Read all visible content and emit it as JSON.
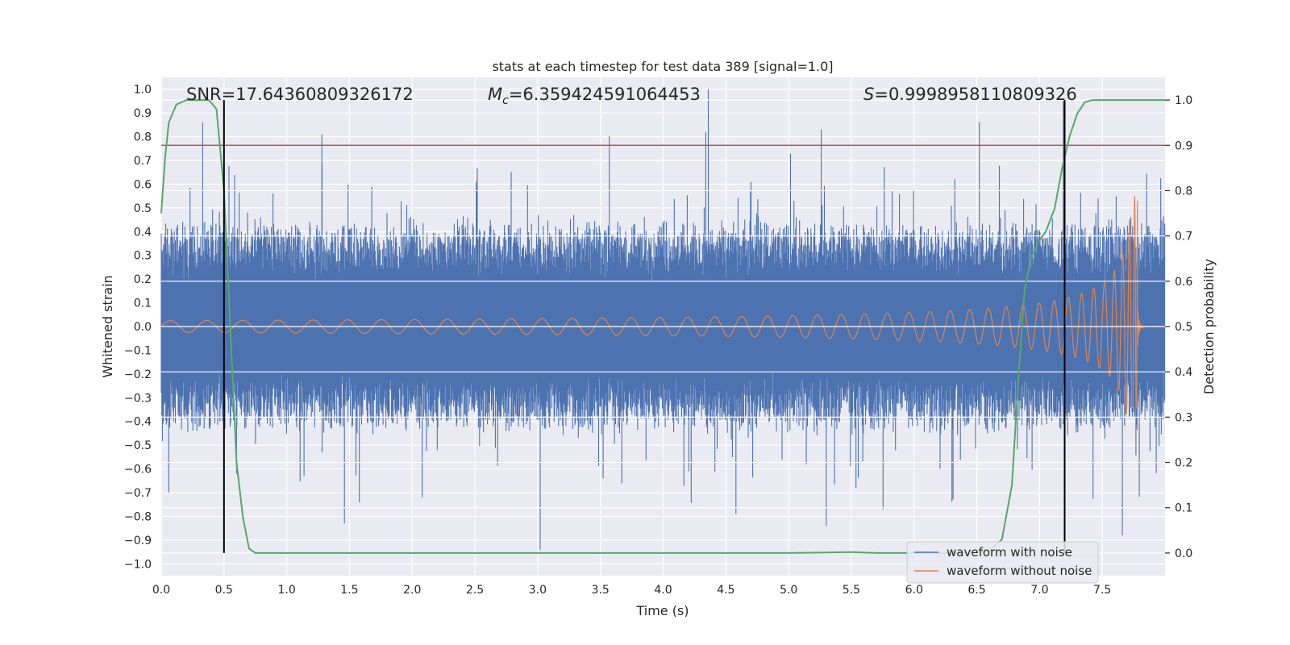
{
  "chart_data": {
    "type": "line",
    "title": "stats at each timestep for test data 389 [signal=1.0]",
    "xlabel": "Time (s)",
    "ylabel": "Whitened strain",
    "y2label": "Detection probability",
    "xlim": [
      0.0,
      8.0
    ],
    "ylim": [
      -1.05,
      1.05
    ],
    "y2lim": [
      -0.05,
      1.05
    ],
    "x_ticks": [
      0.0,
      0.5,
      1.0,
      1.5,
      2.0,
      2.5,
      3.0,
      3.5,
      4.0,
      4.5,
      5.0,
      5.5,
      6.0,
      6.5,
      7.0,
      7.5
    ],
    "x_tick_labels": [
      "0.0",
      "0.5",
      "1.0",
      "1.5",
      "2.0",
      "2.5",
      "3.0",
      "3.5",
      "4.0",
      "4.5",
      "5.0",
      "5.5",
      "6.0",
      "6.5",
      "7.0",
      "7.5"
    ],
    "y_ticks": [
      1.0,
      0.9,
      0.8,
      0.7,
      0.6,
      0.5,
      0.4,
      0.3,
      0.2,
      0.1,
      0.0,
      -0.1,
      -0.2,
      -0.3,
      -0.4,
      -0.5,
      -0.6,
      -0.7,
      -0.8,
      -0.9,
      -1.0
    ],
    "y_tick_labels": [
      "1.0",
      "0.9",
      "0.8",
      "0.7",
      "0.6",
      "0.5",
      "0.4",
      "0.3",
      "0.2",
      "0.1",
      "0.0",
      "−0.1",
      "−0.2",
      "−0.3",
      "−0.4",
      "−0.5",
      "−0.6",
      "−0.7",
      "−0.8",
      "−0.9",
      "−1.0"
    ],
    "y2_ticks": [
      1.0,
      0.9,
      0.8,
      0.7,
      0.6,
      0.5,
      0.4,
      0.3,
      0.2,
      0.1,
      0.0
    ],
    "y2_tick_labels": [
      "1.0",
      "0.9",
      "0.8",
      "0.7",
      "0.6",
      "0.5",
      "0.4",
      "0.3",
      "0.2",
      "0.1",
      "0.0"
    ],
    "annotations": {
      "snr": "SNR=17.64360809326172",
      "mc_symbol": "M",
      "mc_sub": "c",
      "mc_value": "=6.359424591064453",
      "s_symbol": "S",
      "s_value": "=0.9998958110809326"
    },
    "threshold": {
      "value": 0.9,
      "axis": "y2",
      "color": "#c44e52"
    },
    "vertical_lines": {
      "x": [
        0.5,
        7.2
      ],
      "y2_range": [
        0.0,
        1.0
      ],
      "color": "#000000"
    },
    "series": [
      {
        "name": "waveform with noise",
        "color": "#4c72b0",
        "axis": "y",
        "description": "whitened noisy strain",
        "base_amplitude": 0.28,
        "peaks": [
          {
            "x": 0.33,
            "y": 0.86
          },
          {
            "x": 4.36,
            "y": 1.0
          },
          {
            "x": 6.52,
            "y": 0.86
          },
          {
            "x": 7.19,
            "y": 0.95
          },
          {
            "x": 3.02,
            "y": -0.94
          },
          {
            "x": 1.46,
            "y": -0.83
          },
          {
            "x": 5.3,
            "y": -0.84
          },
          {
            "x": 7.66,
            "y": -0.88
          },
          {
            "x": 0.06,
            "y": -0.7
          },
          {
            "x": 4.58,
            "y": -0.79
          },
          {
            "x": 4.34,
            "y": 0.82
          },
          {
            "x": 5.26,
            "y": 0.83
          },
          {
            "x": 1.28,
            "y": 0.81
          },
          {
            "x": 2.08,
            "y": -0.72
          },
          {
            "x": 0.6,
            "y": -0.62
          }
        ]
      },
      {
        "name": "waveform without noise",
        "color": "#dd8452",
        "axis": "y",
        "description": "chirp signal",
        "merger_time": 7.78,
        "peak_amplitude": 0.55,
        "peak_negative": -0.34,
        "start_amplitude": 0.025
      },
      {
        "name": "detection probability",
        "color": "#55a868",
        "axis": "y2",
        "x": [
          0.0,
          0.03,
          0.06,
          0.12,
          0.2,
          0.3,
          0.38,
          0.44,
          0.5,
          0.55,
          0.6,
          0.65,
          0.7,
          0.75,
          1.0,
          2.0,
          3.0,
          4.0,
          5.0,
          5.5,
          5.7,
          6.0,
          6.4,
          6.6,
          6.7,
          6.78,
          6.83,
          6.88,
          6.93,
          7.0,
          7.05,
          7.12,
          7.18,
          7.24,
          7.3,
          7.36,
          7.42,
          7.5,
          7.8,
          8.0
        ],
        "y": [
          0.75,
          0.87,
          0.95,
          0.99,
          1.0,
          1.0,
          1.0,
          0.98,
          0.8,
          0.5,
          0.2,
          0.08,
          0.01,
          0.0,
          0.0,
          0.0,
          0.0,
          0.0,
          0.0,
          0.002,
          0.0,
          0.0,
          0.0,
          0.005,
          0.03,
          0.15,
          0.38,
          0.58,
          0.65,
          0.69,
          0.71,
          0.76,
          0.85,
          0.92,
          0.97,
          0.995,
          1.0,
          1.0,
          1.0,
          1.0
        ]
      }
    ],
    "legend": {
      "placement": "lower-right",
      "entries": [
        "waveform with noise",
        "waveform without noise"
      ],
      "colors": [
        "#4c72b0",
        "#dd8452"
      ]
    }
  }
}
